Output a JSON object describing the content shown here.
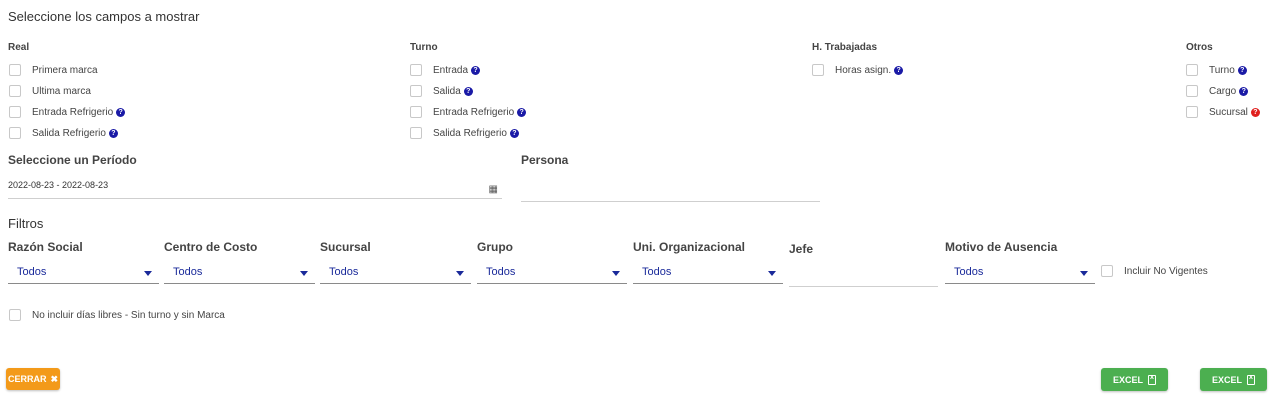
{
  "header": {
    "title": "Seleccione los campos a mostrar"
  },
  "columns": {
    "real": {
      "title": "Real",
      "items": [
        {
          "label": "Primera marca",
          "help": false
        },
        {
          "label": "Ultima marca",
          "help": false
        },
        {
          "label": "Entrada Refrigerio",
          "help": true
        },
        {
          "label": "Salida Refrigerio",
          "help": true
        }
      ]
    },
    "turno": {
      "title": "Turno",
      "items": [
        {
          "label": "Entrada",
          "help": true
        },
        {
          "label": "Salida",
          "help": true
        },
        {
          "label": "Entrada Refrigerio",
          "help": true
        },
        {
          "label": "Salida Refrigerio",
          "help": true
        }
      ]
    },
    "htrabajadas": {
      "title": "H. Trabajadas",
      "items": [
        {
          "label": "Horas asign.",
          "help": true
        }
      ]
    },
    "otros": {
      "title": "Otros",
      "items": [
        {
          "label": "Turno",
          "help": true
        },
        {
          "label": "Cargo",
          "help": true
        },
        {
          "label": "Sucursal",
          "help": true,
          "help_color": "#e0201e"
        }
      ]
    }
  },
  "period": {
    "label": "Seleccione un Período",
    "value": "2022-08-23 - 2022-08-23"
  },
  "person": {
    "label": "Persona",
    "value": ""
  },
  "filters": {
    "title": "Filtros",
    "razon_social": {
      "label": "Razón Social",
      "value": "Todos"
    },
    "centro_costo": {
      "label": "Centro de Costo",
      "value": "Todos"
    },
    "sucursal": {
      "label": "Sucursal",
      "value": "Todos"
    },
    "grupo": {
      "label": "Grupo",
      "value": "Todos"
    },
    "uni_org": {
      "label": "Uni. Organizacional",
      "value": "Todos"
    },
    "jefe": {
      "label": "Jefe",
      "value": ""
    },
    "motivo": {
      "label": "Motivo de Ausencia",
      "value": "Todos"
    },
    "incluir_no_vigentes": "Incluir No Vigentes",
    "no_incluir_libres": "No incluir días libres - Sin turno y sin Marca"
  },
  "buttons": {
    "close": "CERRAR",
    "excel1": "EXCEL",
    "excel2": "EXCEL"
  },
  "colors": {
    "accent_blue": "#1a2a9a",
    "help_blue": "#1a1aa6",
    "help_red": "#e0201e",
    "close": "#f39a1a",
    "excel": "#4caf50"
  }
}
